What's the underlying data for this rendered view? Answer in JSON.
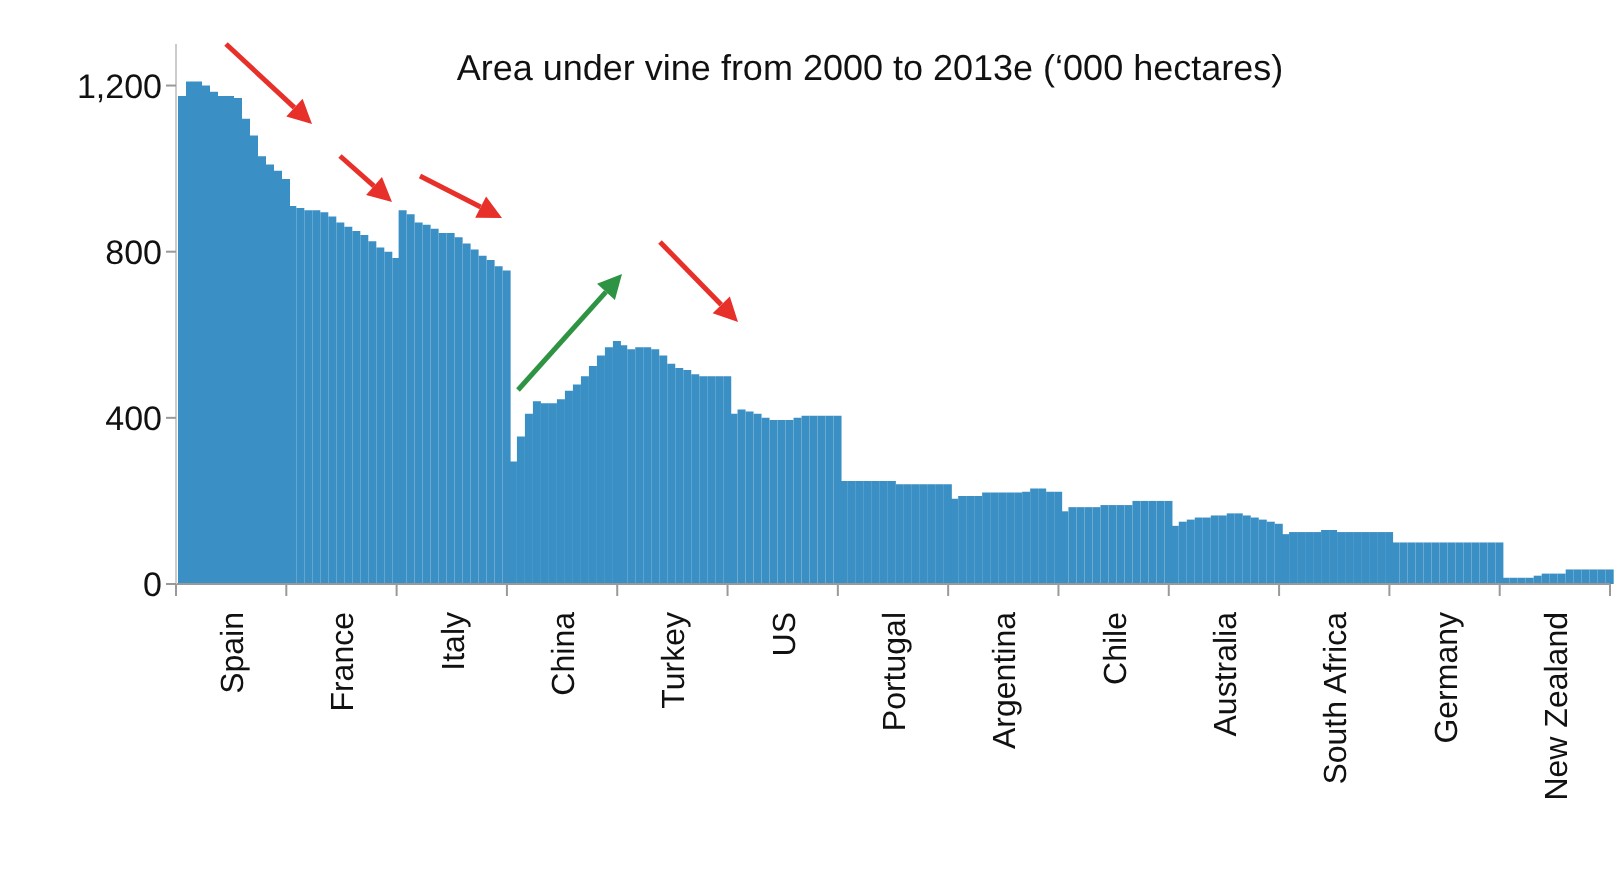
{
  "chart_data": {
    "type": "bar",
    "title": "Area under vine from 2000 to 2013e (‘000 hectares)",
    "categories": [
      "Spain",
      "France",
      "Italy",
      "China",
      "Turkey",
      "US",
      "Portugal",
      "Argentina",
      "Chile",
      "Australia",
      "South Africa",
      "Germany",
      "New Zealand"
    ],
    "series": [
      {
        "color": "#3a8fc4",
        "values": [
          1175,
          910,
          900,
          295,
          575,
          410,
          248,
          205,
          175,
          140,
          120,
          100,
          15
        ]
      },
      {
        "color": "#3a8fc4",
        "values": [
          1210,
          905,
          890,
          355,
          565,
          420,
          248,
          212,
          185,
          150,
          125,
          100,
          15
        ]
      },
      {
        "color": "#3a8fc4",
        "values": [
          1210,
          900,
          870,
          410,
          570,
          415,
          248,
          212,
          185,
          155,
          125,
          100,
          15
        ]
      },
      {
        "color": "#3a8fc4",
        "values": [
          1200,
          900,
          865,
          440,
          570,
          410,
          248,
          212,
          185,
          160,
          125,
          100,
          15
        ]
      },
      {
        "color": "#3a8fc4",
        "values": [
          1185,
          895,
          855,
          435,
          565,
          400,
          248,
          220,
          185,
          160,
          125,
          100,
          20
        ]
      },
      {
        "color": "#3a8fc4",
        "values": [
          1175,
          885,
          845,
          435,
          550,
          395,
          248,
          220,
          190,
          165,
          130,
          100,
          25
        ]
      },
      {
        "color": "#3a8fc4",
        "values": [
          1175,
          870,
          845,
          445,
          530,
          395,
          248,
          220,
          190,
          165,
          130,
          100,
          25
        ]
      },
      {
        "color": "#3a8fc4",
        "values": [
          1170,
          860,
          835,
          465,
          520,
          395,
          240,
          220,
          190,
          170,
          125,
          100,
          25
        ]
      },
      {
        "color": "#3a8fc4",
        "values": [
          1120,
          850,
          820,
          480,
          515,
          400,
          240,
          220,
          190,
          170,
          125,
          100,
          35
        ]
      },
      {
        "color": "#3a8fc4",
        "values": [
          1080,
          840,
          805,
          500,
          505,
          405,
          240,
          222,
          200,
          165,
          125,
          100,
          35
        ]
      },
      {
        "color": "#3a8fc4",
        "values": [
          1030,
          825,
          790,
          525,
          500,
          405,
          240,
          230,
          200,
          160,
          125,
          100,
          35
        ]
      },
      {
        "color": "#3a8fc4",
        "values": [
          1010,
          810,
          780,
          550,
          500,
          405,
          240,
          230,
          200,
          155,
          125,
          100,
          35
        ]
      },
      {
        "color": "#3a8fc4",
        "values": [
          995,
          800,
          765,
          570,
          500,
          405,
          240,
          222,
          200,
          150,
          125,
          100,
          35
        ]
      },
      {
        "color": "#3a8fc4",
        "values": [
          975,
          785,
          755,
          585,
          500,
          405,
          240,
          222,
          200,
          145,
          125,
          100,
          35
        ]
      }
    ],
    "ylim": [
      0,
      1300
    ],
    "yticks": [
      0,
      400,
      800,
      {
        "value": 1200,
        "label": "1,200"
      }
    ]
  }
}
